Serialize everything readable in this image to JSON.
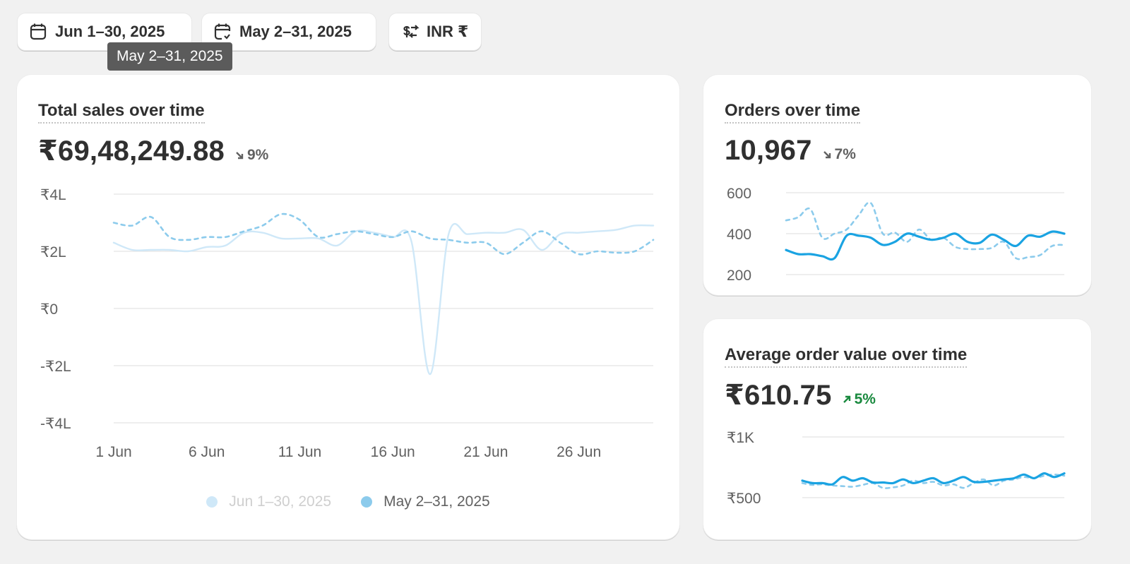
{
  "toolbar": {
    "date_range": "Jun 1–30, 2025",
    "compare_range": "May 2–31, 2025",
    "currency": "INR ₹",
    "tooltip": "May 2–31, 2025"
  },
  "colors": {
    "current_series": "#cfe8f8",
    "previous_series": "#8ccbec",
    "active_series": "#1aa3e2",
    "grid": "#e3e3e3",
    "up": "#1a8a3f",
    "down": "#616161"
  },
  "total_sales": {
    "title": "Total sales over time",
    "value": "₹69,48,249.88",
    "change": "9%",
    "direction": "down",
    "y_ticks": [
      "₹4L",
      "₹2L",
      "₹0",
      "-₹2L",
      "-₹4L"
    ],
    "x_ticks": [
      "1 Jun",
      "6 Jun",
      "11 Jun",
      "16 Jun",
      "21 Jun",
      "26 Jun"
    ],
    "legend": [
      "Jun 1–30, 2025",
      "May 2–31, 2025"
    ]
  },
  "orders": {
    "title": "Orders over time",
    "value": "10,967",
    "change": "7%",
    "direction": "down",
    "y_ticks": [
      "600",
      "400",
      "200"
    ]
  },
  "aov": {
    "title": "Average order value over time",
    "value": "₹610.75",
    "change": "5%",
    "direction": "up",
    "y_ticks": [
      "₹1K",
      "₹500"
    ]
  },
  "chart_data": [
    {
      "type": "line",
      "ylim": [
        -400000,
        400000
      ],
      "x_day_start": 1,
      "series": [
        {
          "name": "Jun 1–30, 2025",
          "style": "solid",
          "values": [
            230000,
            205000,
            205000,
            205000,
            200000,
            215000,
            220000,
            265000,
            265000,
            245000,
            245000,
            245000,
            220000,
            270000,
            265000,
            250000,
            235000,
            -230000,
            260000,
            260000,
            265000,
            265000,
            275000,
            205000,
            260000,
            265000,
            270000,
            275000,
            290000,
            290000
          ]
        },
        {
          "name": "May 2–31, 2025",
          "style": "dashed",
          "values": [
            300000,
            290000,
            320000,
            250000,
            240000,
            250000,
            250000,
            270000,
            290000,
            330000,
            310000,
            250000,
            260000,
            270000,
            260000,
            250000,
            270000,
            245000,
            240000,
            230000,
            230000,
            190000,
            230000,
            270000,
            230000,
            190000,
            200000,
            195000,
            200000,
            240000
          ]
        }
      ]
    },
    {
      "type": "line",
      "ylim": [
        200,
        600
      ],
      "series": [
        {
          "name": "Jun 1–30, 2025",
          "style": "solid",
          "values": [
            320,
            300,
            300,
            290,
            280,
            390,
            390,
            380,
            345,
            360,
            400,
            385,
            370,
            380,
            400,
            360,
            355,
            395,
            370,
            340,
            390,
            385,
            410,
            400
          ]
        },
        {
          "name": "May 2–31, 2025",
          "style": "dashed",
          "values": [
            465,
            480,
            520,
            380,
            400,
            420,
            490,
            550,
            400,
            405,
            360,
            420,
            370,
            380,
            335,
            325,
            325,
            330,
            360,
            280,
            285,
            295,
            340,
            345
          ]
        }
      ]
    },
    {
      "type": "line",
      "ylim": [
        500,
        1000
      ],
      "series": [
        {
          "name": "Jun 1–30, 2025",
          "style": "solid",
          "values": [
            640,
            620,
            620,
            610,
            670,
            640,
            660,
            625,
            625,
            620,
            650,
            620,
            640,
            660,
            620,
            640,
            670,
            630,
            630,
            640,
            650,
            660,
            690,
            660,
            700,
            670,
            700
          ]
        },
        {
          "name": "May 2–31, 2025",
          "style": "dashed",
          "values": [
            620,
            605,
            610,
            600,
            595,
            590,
            605,
            620,
            580,
            585,
            600,
            640,
            620,
            630,
            600,
            610,
            580,
            620,
            650,
            600,
            640,
            650,
            670,
            660,
            680,
            690,
            680
          ]
        }
      ]
    }
  ]
}
